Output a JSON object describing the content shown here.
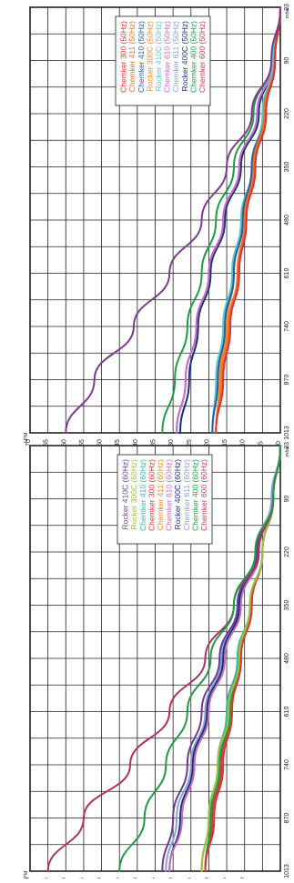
{
  "chart_data": [
    {
      "type": "line",
      "title": "",
      "y_axis_label": "LPM",
      "x_axis_unit": "mbar",
      "x_ticks": [
        1013,
        870,
        740,
        610,
        480,
        350,
        220,
        90,
        23
      ],
      "y_ticks": [
        0,
        5,
        10,
        15,
        20,
        25,
        30,
        35,
        40,
        45,
        50,
        55,
        60,
        65,
        70
      ],
      "xlim": [
        1013,
        0
      ],
      "ylim": [
        0,
        70
      ],
      "grid": true,
      "legend_position": "top-right",
      "x_categories_note": "",
      "series": [
        {
          "name": "Chemker 600 (60Hz)",
          "color": "#c63c4c",
          "x": [
            1013,
            870,
            740,
            610,
            480,
            350,
            220,
            90,
            23
          ],
          "y": [
            21,
            19,
            16.5,
            14,
            11,
            8,
            5,
            2,
            0
          ]
        },
        {
          "name": "Chemker 400 (60Hz)",
          "color": "#1f9a45",
          "x": [
            1013,
            870,
            740,
            610,
            480,
            350,
            220,
            90,
            23
          ],
          "y": [
            21,
            19.5,
            17,
            14,
            11,
            8,
            5,
            2,
            0
          ]
        },
        {
          "name": "Chemker 611 (60Hz)",
          "color": "#8aa1d6",
          "x": [
            1013,
            870,
            740,
            610,
            480,
            350,
            220,
            90,
            23
          ],
          "y": [
            32,
            29,
            25,
            21,
            16.5,
            12,
            7,
            2.5,
            0
          ]
        },
        {
          "name": "Rocker 400C (60Hz)",
          "color": "#1e2f7a",
          "x": [
            1013,
            870,
            740,
            610,
            480,
            350,
            220,
            90,
            23
          ],
          "y": [
            31,
            28,
            24.5,
            20.5,
            16,
            11.5,
            6.5,
            2,
            0
          ]
        },
        {
          "name": "Chemker 610 (60Hz)",
          "color": "#c46bc5",
          "x": [
            1013,
            870,
            740,
            610,
            480,
            350,
            220,
            90,
            23
          ],
          "y": [
            31,
            27.5,
            24,
            20,
            15.5,
            11,
            6,
            2,
            0
          ]
        },
        {
          "name": "Chemker 411 (60Hz)",
          "color": "#f08a2a",
          "x": [
            1013,
            870,
            740,
            610,
            480,
            350,
            220,
            90,
            23
          ],
          "y": [
            22,
            20,
            17.5,
            15,
            12,
            8.5,
            5,
            2,
            0
          ]
        },
        {
          "name": "Chemker 300 (60Hz)",
          "color": "#e3312b",
          "x": [
            1013,
            870,
            740,
            610,
            480,
            350,
            220,
            90,
            23
          ],
          "y": [
            21,
            18.5,
            16,
            13.5,
            11,
            8,
            5,
            2,
            0
          ]
        },
        {
          "name": "Chemker 410 (60Hz)",
          "color": "#3ab3a8",
          "x": [
            1013,
            870,
            740,
            610,
            480,
            350,
            220,
            90,
            23
          ],
          "y": [
            22,
            20,
            17.5,
            15,
            12,
            8.5,
            5,
            2,
            0
          ]
        },
        {
          "name": "Rocker 300C (60Hz)",
          "color": "#9ac13c",
          "x": [
            1013,
            870,
            740,
            610,
            480,
            350,
            220,
            90,
            23
          ],
          "y": [
            22,
            20,
            17.5,
            14.5,
            11.5,
            8.5,
            5,
            2,
            0
          ]
        },
        {
          "name": "Rocker 410C (60Hz)",
          "color": "#6b3c8c",
          "x": [
            1013,
            870,
            740,
            610,
            480,
            350,
            220,
            90,
            23
          ],
          "y": [
            33,
            30,
            26,
            22,
            17,
            12,
            6.5,
            2,
            0
          ]
        },
        {
          "name": "",
          "color": "#b0305f",
          "x": [
            1013,
            870,
            740,
            610,
            480,
            350,
            220,
            90,
            23
          ],
          "y": [
            65,
            55,
            42,
            31,
            21,
            13,
            6,
            2,
            0
          ]
        },
        {
          "name": "",
          "color": "#1f9a45",
          "x": [
            1013,
            870,
            740,
            610,
            480,
            350,
            220,
            90,
            23
          ],
          "y": [
            45,
            38,
            32,
            26,
            19.5,
            13,
            7,
            2,
            0
          ]
        }
      ]
    },
    {
      "type": "line",
      "title": "",
      "y_axis_label": "LPM",
      "x_axis_unit": "mbar",
      "x_ticks": [
        1013,
        870,
        740,
        610,
        480,
        350,
        220,
        90,
        23
      ],
      "y_ticks": [
        0,
        5,
        10,
        15,
        20,
        25,
        30,
        35,
        40,
        45,
        50,
        55,
        60,
        65,
        70
      ],
      "xlim": [
        1013,
        0
      ],
      "ylim": [
        0,
        70
      ],
      "grid": true,
      "legend_position": "top-right",
      "series": [
        {
          "name": "Chemker 600 (50Hz)",
          "color": "#c63c4c",
          "x": [
            1013,
            870,
            740,
            610,
            480,
            350,
            220,
            90,
            23
          ],
          "y": [
            18,
            16,
            14,
            12,
            9.5,
            7,
            4,
            1.5,
            0
          ]
        },
        {
          "name": "Chemker 400 (50Hz)",
          "color": "#1f9a45",
          "x": [
            1013,
            870,
            740,
            610,
            480,
            350,
            220,
            90,
            23
          ],
          "y": [
            33,
            29.5,
            26,
            22,
            18,
            13,
            7.5,
            2.5,
            0
          ]
        },
        {
          "name": "Rocker 400C (50Hz)",
          "color": "#1e2f7a",
          "x": [
            1013,
            870,
            740,
            610,
            480,
            350,
            220,
            90,
            23
          ],
          "y": [
            28,
            25.5,
            23,
            19.5,
            15.5,
            11,
            6,
            2,
            0
          ]
        },
        {
          "name": "Chemker 611 (50Hz)",
          "color": "#8aa1d6",
          "x": [
            1013,
            870,
            740,
            610,
            480,
            350,
            220,
            90,
            23
          ],
          "y": [
            29,
            26.5,
            23.5,
            20,
            16,
            11.5,
            6.5,
            2,
            0
          ]
        },
        {
          "name": "Chemker 610 (50Hz)",
          "color": "#c46bc5",
          "x": [
            1013,
            870,
            740,
            610,
            480,
            350,
            220,
            90,
            23
          ],
          "y": [
            29,
            26.5,
            23.5,
            20,
            16,
            11.5,
            6.5,
            2,
            0
          ]
        },
        {
          "name": "Rocker 410C (50Hz)",
          "color": "#5fc6bf",
          "x": [
            1013,
            870,
            740,
            610,
            480,
            350,
            220,
            90,
            23
          ],
          "y": [
            19,
            18,
            16,
            13.5,
            11,
            8,
            5,
            2,
            0
          ]
        },
        {
          "name": "Rocker 300C (50Hz)",
          "color": "#f08a2a",
          "x": [
            1013,
            870,
            740,
            610,
            480,
            350,
            220,
            90,
            23
          ],
          "y": [
            18,
            17,
            15,
            13,
            10.5,
            8,
            4.5,
            1.5,
            0
          ]
        },
        {
          "name": "Chemker 410 (50Hz)",
          "color": "#1f5fa8",
          "x": [
            1013,
            870,
            740,
            610,
            480,
            350,
            220,
            90,
            23
          ],
          "y": [
            19,
            17.5,
            15.5,
            13,
            10.5,
            8,
            4.5,
            1.5,
            0
          ]
        },
        {
          "name": "Chemker 411 (50Hz)",
          "color": "#e8752a",
          "x": [
            1013,
            870,
            740,
            610,
            480,
            350,
            220,
            90,
            23
          ],
          "y": [
            18,
            16.5,
            14.5,
            12,
            10,
            7.5,
            4.5,
            1.5,
            0
          ]
        },
        {
          "name": "Chemker 300 (50Hz)",
          "color": "#e3312b",
          "x": [
            1013,
            870,
            740,
            610,
            480,
            350,
            220,
            90,
            23
          ],
          "y": [
            18,
            16,
            14,
            11.5,
            9.5,
            7,
            4,
            1.5,
            0
          ]
        },
        {
          "name": "",
          "color": "#7b3c8c",
          "x": [
            1013,
            870,
            740,
            610,
            480,
            350,
            220,
            90,
            23
          ],
          "y": [
            60,
            52,
            41,
            31,
            22,
            15,
            8,
            2.5,
            0
          ]
        }
      ]
    }
  ]
}
